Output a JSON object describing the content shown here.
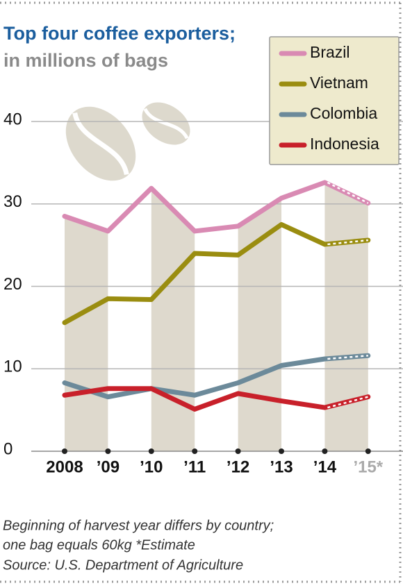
{
  "chart_data": {
    "type": "line",
    "title": "Top four coffee exporters;",
    "subtitle": "in millions of bags",
    "categories": [
      "2008",
      "’09",
      "’10",
      "’11",
      "’12",
      "’13",
      "’14",
      "’15*"
    ],
    "series": [
      {
        "name": "Brazil",
        "color": "#d98ab3",
        "values": [
          28.5,
          26.7,
          31.9,
          26.7,
          27.3,
          30.7,
          32.6,
          30.1
        ]
      },
      {
        "name": "Vietnam",
        "color": "#9a8d10",
        "values": [
          15.6,
          18.5,
          18.4,
          24.0,
          23.8,
          27.5,
          25.1,
          25.6
        ]
      },
      {
        "name": "Colombia",
        "color": "#6c8a9a",
        "values": [
          8.3,
          6.6,
          7.6,
          6.8,
          8.3,
          10.4,
          11.2,
          11.6
        ]
      },
      {
        "name": "Indonesia",
        "color": "#c8202a",
        "values": [
          6.8,
          7.6,
          7.6,
          5.1,
          7.0,
          6.1,
          5.3,
          6.6
        ]
      }
    ],
    "ylim": [
      0,
      40
    ],
    "yticks": [
      0,
      10,
      20,
      30,
      40
    ],
    "grid": true,
    "legend": "top-right",
    "notes": [
      "Beginning of harvest year differs by country;",
      "one bag equals 60kg  *Estimate",
      "Source: U.S. Department of Agriculture"
    ]
  }
}
